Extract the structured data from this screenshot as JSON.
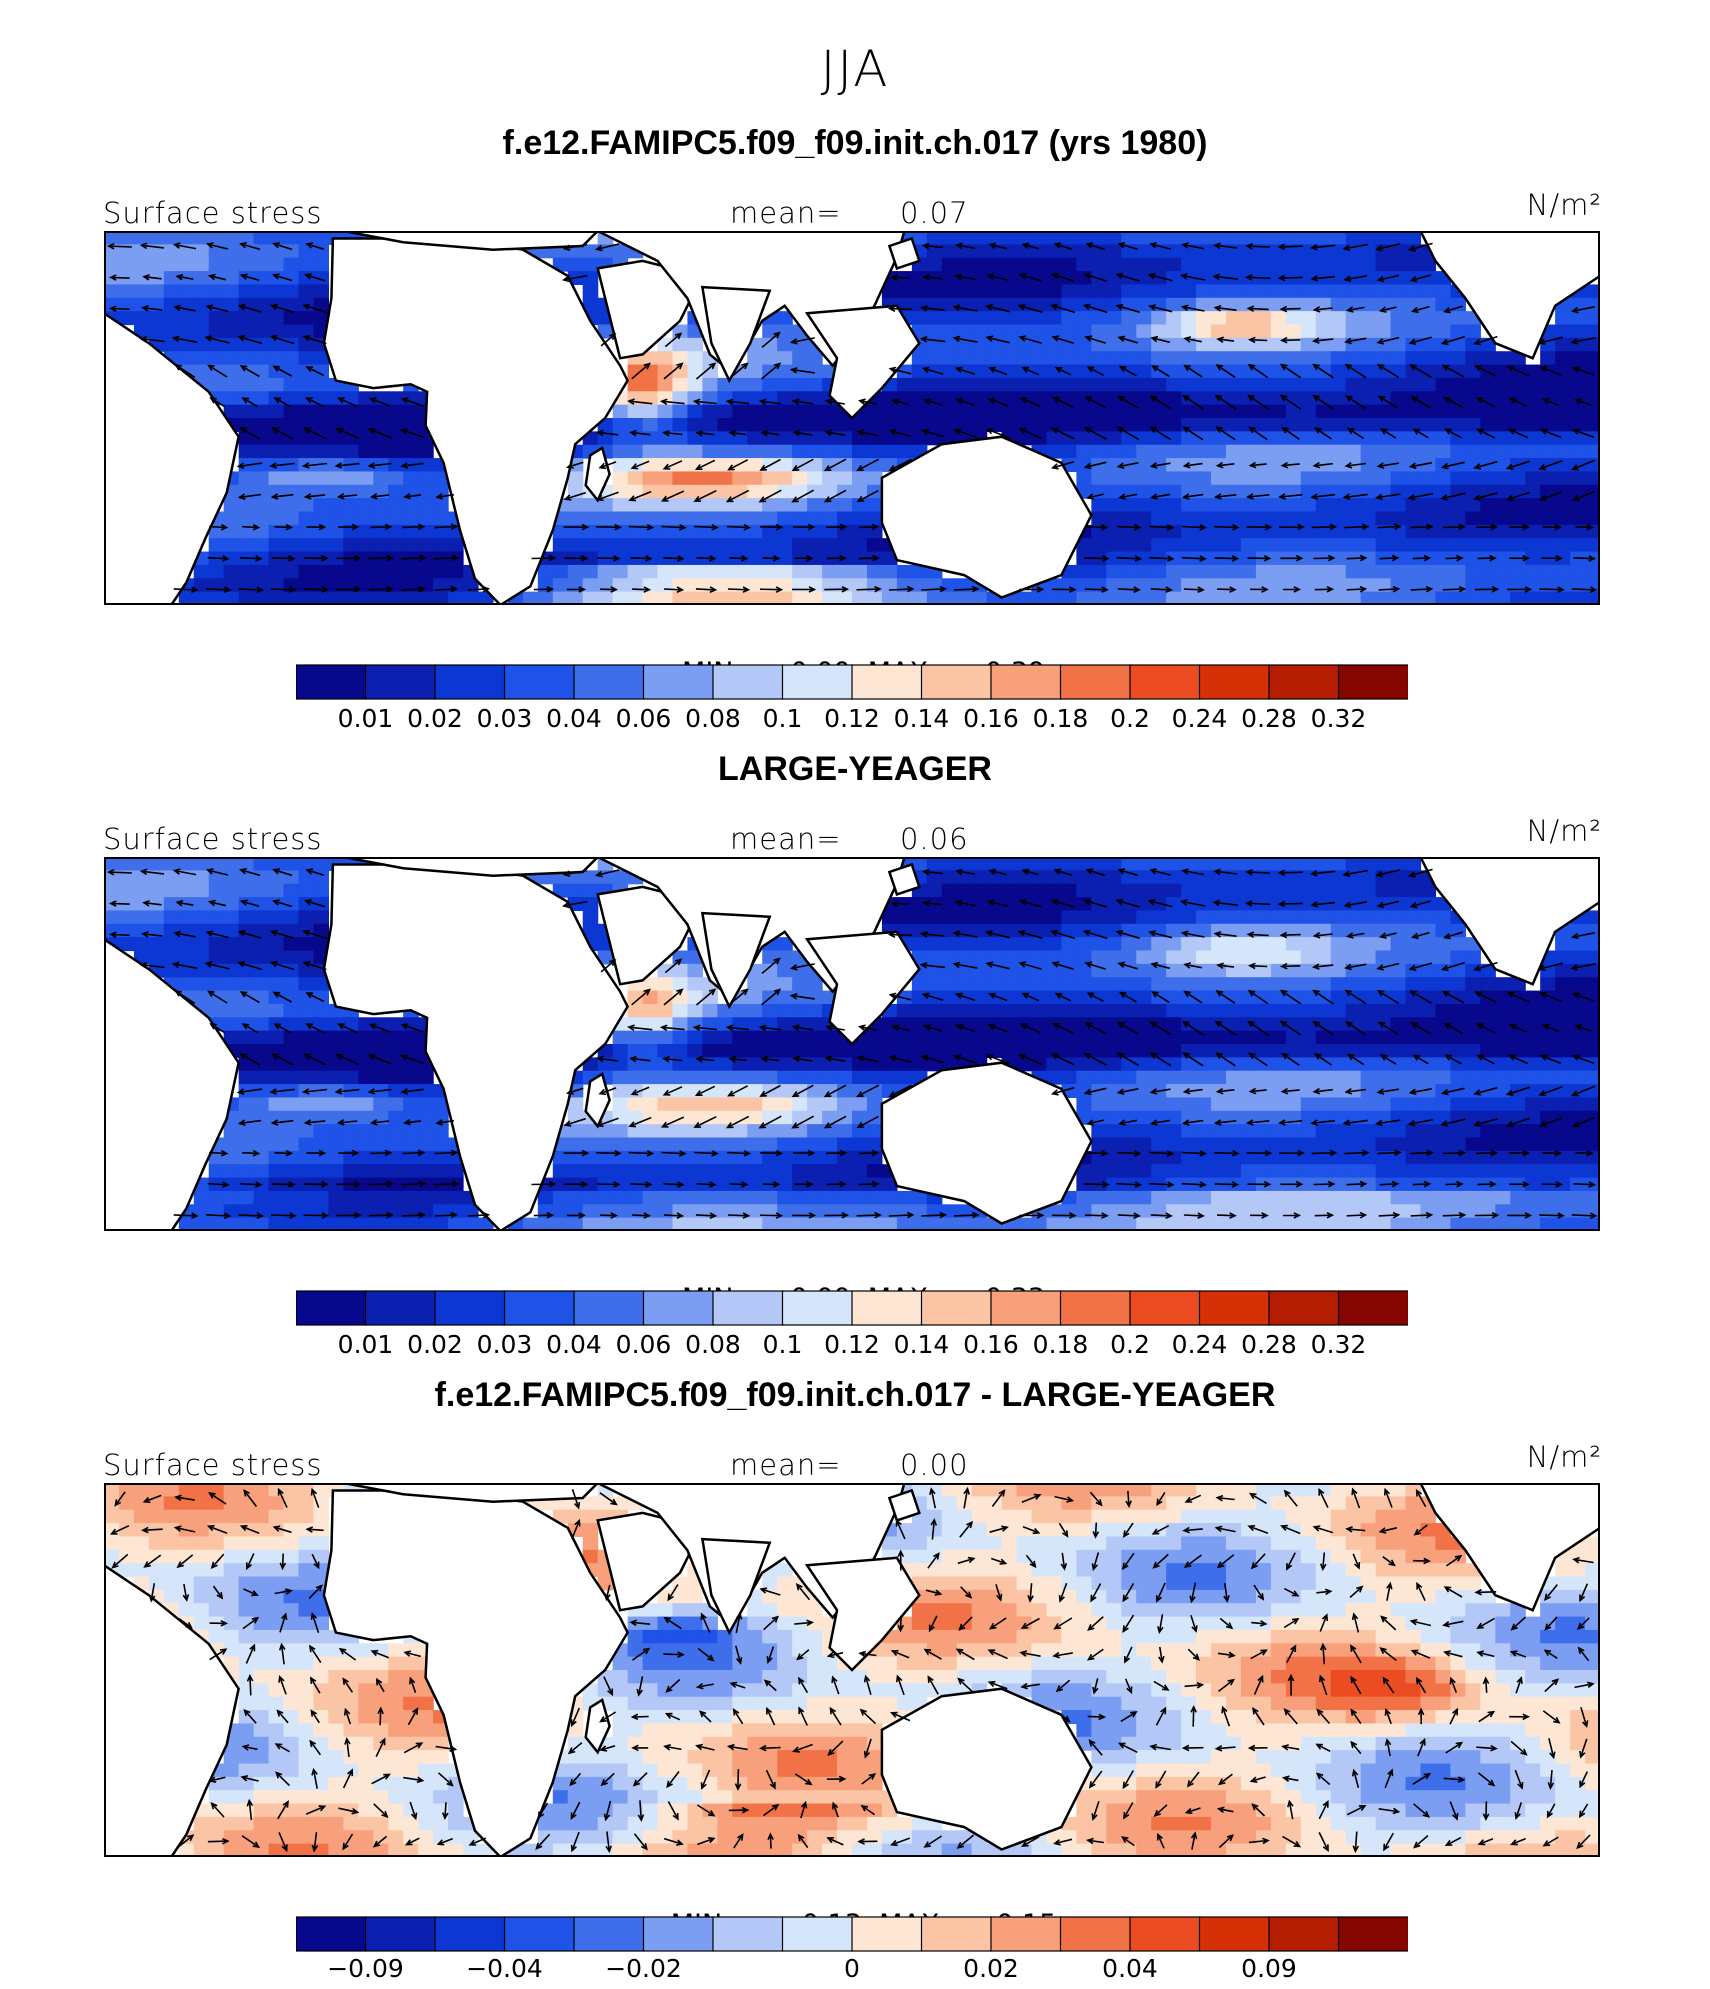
{
  "season": "JJA",
  "colors": {
    "scale": [
      "#08088c",
      "#0b1fb0",
      "#0d37d2",
      "#1f52e6",
      "#3e6ee9",
      "#7b9ef2",
      "#b3c8f7",
      "#d6e6fa",
      "#fde7d4",
      "#fbc4a4",
      "#f8a07c",
      "#f27248",
      "#ec4c22",
      "#d63007",
      "#b51d03",
      "#850600"
    ],
    "land": "#ffffff",
    "coast": "#000000",
    "arrow": "#000000"
  },
  "panels": [
    {
      "title": "f.e12.FAMIPC5.f09_f09.init.ch.017 (yrs 1980)",
      "variable": "Surface stress",
      "mean_label": "mean=",
      "mean_value": "0.07",
      "units": "N/m²",
      "min_label": "MIN =",
      "min_value": "0.00",
      "max_label": "MAX =",
      "max_value": "0.39",
      "colorbar_ticks": [
        "0.01",
        "0.02",
        "0.03",
        "0.04",
        "0.06",
        "0.08",
        "0.1",
        "0.12",
        "0.14",
        "0.16",
        "0.18",
        "0.2",
        "0.24",
        "0.28",
        "0.32"
      ],
      "field": "model"
    },
    {
      "title": "LARGE-YEAGER",
      "variable": "Surface stress",
      "mean_label": "mean=",
      "mean_value": "0.06",
      "units": "N/m²",
      "min_label": "MIN =",
      "min_value": "0.00",
      "max_label": "MAX =",
      "max_value": "0.33",
      "colorbar_ticks": [
        "0.01",
        "0.02",
        "0.03",
        "0.04",
        "0.06",
        "0.08",
        "0.1",
        "0.12",
        "0.14",
        "0.16",
        "0.18",
        "0.2",
        "0.24",
        "0.28",
        "0.32"
      ],
      "field": "obs"
    },
    {
      "title": "f.e12.FAMIPC5.f09_f09.init.ch.017 - LARGE-YEAGER",
      "variable": "Surface stress",
      "mean_label": "mean=",
      "mean_value": "0.00",
      "units": "N/m²",
      "min_label": "MIN =",
      "min_value": "−0.13",
      "max_label": "MAX =",
      "max_value": "0.15",
      "colorbar_ticks": [
        "−0.09",
        "",
        "−0.04",
        "",
        "−0.02",
        "",
        "",
        "0",
        "",
        "0.02",
        "",
        "0.04",
        "",
        "0.09",
        ""
      ],
      "field": "diff"
    }
  ]
}
